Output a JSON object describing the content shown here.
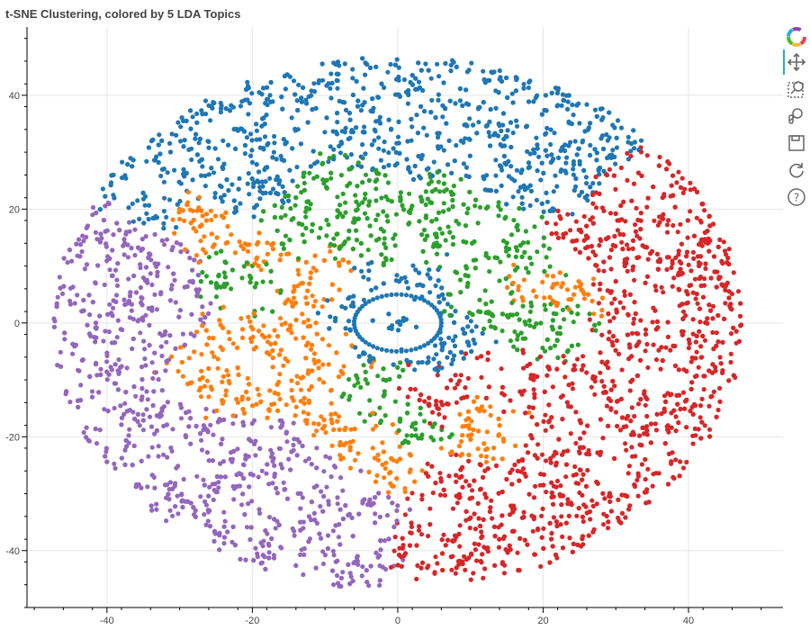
{
  "title": "t-SNE Clustering, colored by 5 LDA Topics",
  "toolbar": {
    "tools": [
      "bokeh-logo",
      "pan",
      "box-zoom",
      "wheel-zoom",
      "save",
      "reset",
      "help"
    ],
    "active": "pan"
  },
  "chart_data": {
    "type": "scatter",
    "title": "t-SNE Clustering, colored by 5 LDA Topics",
    "xlabel": "",
    "ylabel": "",
    "xlim": [
      -51,
      53
    ],
    "ylim": [
      -50,
      52
    ],
    "xticks": [
      -40,
      -20,
      0,
      20,
      40
    ],
    "yticks": [
      -40,
      -20,
      0,
      20,
      40
    ],
    "grid": true,
    "legend": "none",
    "series": [
      {
        "color": "#1f77b4",
        "region": "top band (y approx 15 to 48) and inner ring around origin"
      },
      {
        "color": "#ff7f0e",
        "region": "center-left (x approx -28 to -3, y approx -25 to 25) and small patch near (20, 8)"
      },
      {
        "color": "#2ca02c",
        "region": "upper center (x approx -22 to 22, y approx -12 to 25)"
      },
      {
        "color": "#d62728",
        "region": "right half (x approx 0 to 48, y approx -45 to 22)"
      },
      {
        "color": "#9467bd",
        "region": "left half (x approx -48 to 0, y approx -45 to 20)"
      }
    ]
  }
}
